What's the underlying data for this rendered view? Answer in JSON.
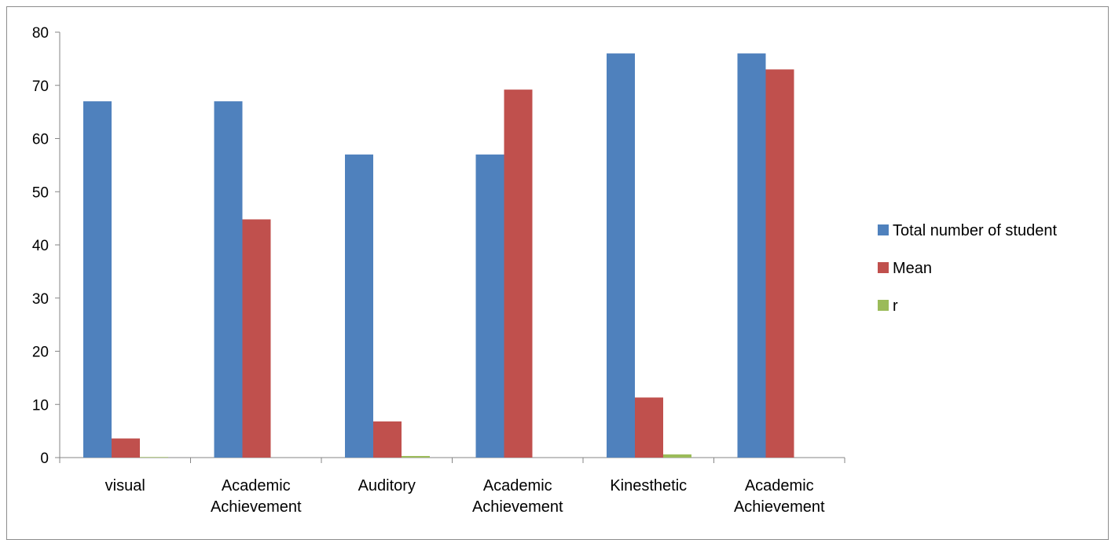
{
  "chart_data": {
    "type": "bar",
    "categories": [
      [
        "visual"
      ],
      [
        "Academic",
        "Achievement"
      ],
      [
        "Auditory"
      ],
      [
        "Academic",
        "Achievement"
      ],
      [
        "Kinesthetic"
      ],
      [
        "Academic",
        "Achievement"
      ]
    ],
    "series": [
      {
        "name": "Total number of student",
        "color": "#4F81BD",
        "values": [
          67,
          67,
          57,
          57,
          76,
          76
        ]
      },
      {
        "name": "Mean",
        "color": "#C0504D",
        "values": [
          3.6,
          44.8,
          6.8,
          69.2,
          11.3,
          73.0
        ]
      },
      {
        "name": "r",
        "color": "#9BBB59",
        "values": [
          0.1,
          0,
          0.3,
          0,
          0.6,
          0
        ]
      }
    ],
    "ylim": [
      0,
      80
    ],
    "yticks": [
      0,
      10,
      20,
      30,
      40,
      50,
      60,
      70,
      80
    ],
    "legend_position": "right",
    "grid": false
  }
}
